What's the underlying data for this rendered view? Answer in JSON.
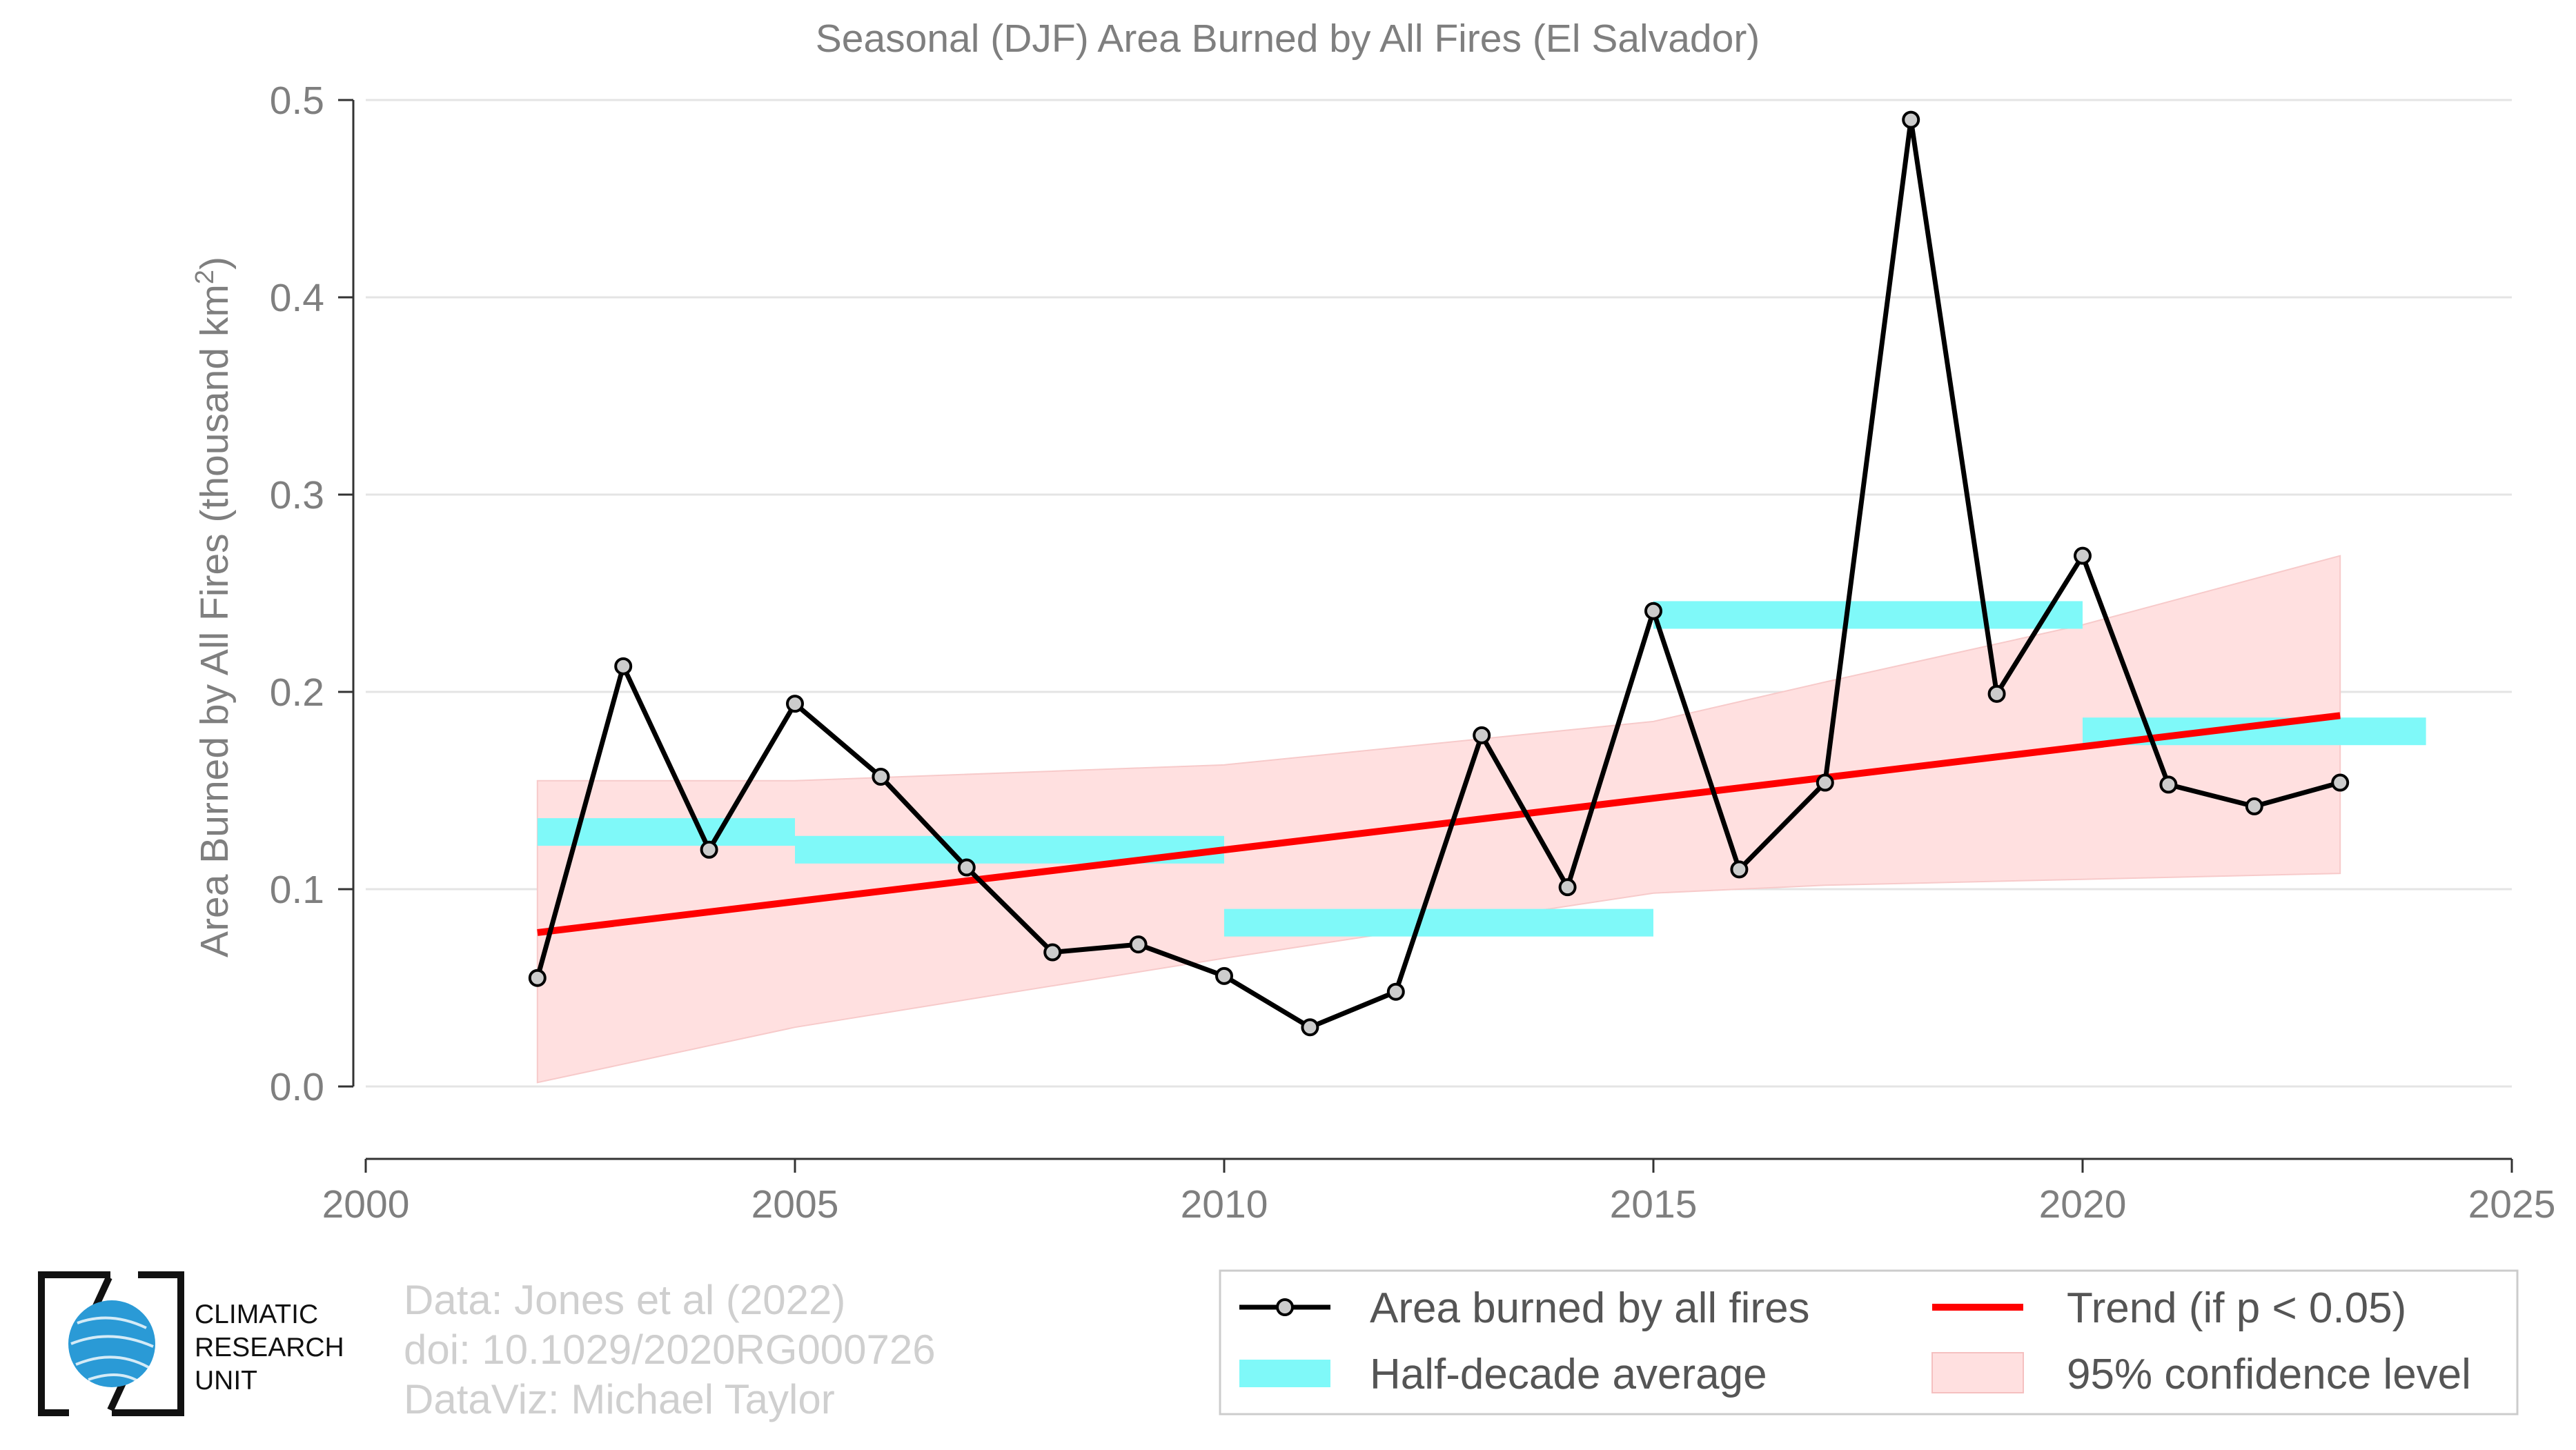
{
  "chart_data": {
    "type": "line",
    "title": "Seasonal (DJF) Area Burned by All Fires (El Salvador)",
    "ylabel": "Area Burned by All Fires (thousand km²)",
    "xlabel": "",
    "xlim": [
      2000,
      2025
    ],
    "ylim": [
      0,
      0.5
    ],
    "xticks": [
      "2000",
      "2005",
      "2010",
      "2015",
      "2020",
      "2025"
    ],
    "yticks": [
      "0.0",
      "0.1",
      "0.2",
      "0.3",
      "0.4",
      "0.5"
    ],
    "grid": "horizontal",
    "legend_position": "bottom-right",
    "series": [
      {
        "name": "Area burned by all fires",
        "color": "#000000",
        "x": [
          2002,
          2003,
          2004,
          2005,
          2006,
          2007,
          2008,
          2009,
          2010,
          2011,
          2012,
          2013,
          2014,
          2015,
          2016,
          2017,
          2018,
          2019,
          2020,
          2021,
          2022,
          2023
        ],
        "y": [
          0.055,
          0.213,
          0.12,
          0.194,
          0.157,
          0.111,
          0.068,
          0.072,
          0.056,
          0.03,
          0.048,
          0.178,
          0.101,
          0.241,
          0.11,
          0.154,
          0.49,
          0.199,
          0.269,
          0.153,
          0.142,
          0.154
        ]
      }
    ],
    "half_decade_average": {
      "name": "Half-decade average",
      "color": "#7ff9f9",
      "segments": [
        {
          "x0": 2002,
          "x1": 2005,
          "y": 0.129
        },
        {
          "x0": 2005,
          "x1": 2010,
          "y": 0.12
        },
        {
          "x0": 2010,
          "x1": 2015,
          "y": 0.083
        },
        {
          "x0": 2015,
          "x1": 2020,
          "y": 0.239
        },
        {
          "x0": 2020,
          "x1": 2024,
          "y": 0.18
        }
      ]
    },
    "trend": {
      "name": "Trend (if p < 0.05)",
      "color": "#ff0000",
      "x": [
        2002,
        2023
      ],
      "y": [
        0.078,
        0.188
      ]
    },
    "confidence": {
      "name": "95% confidence level",
      "color": "#ffe0e0",
      "x": [
        2002,
        2005,
        2010,
        2015,
        2017,
        2020,
        2023
      ],
      "upper": [
        0.155,
        0.155,
        0.163,
        0.185,
        0.205,
        0.234,
        0.269
      ],
      "lower": [
        0.002,
        0.03,
        0.065,
        0.098,
        0.102,
        0.105,
        0.108
      ]
    }
  },
  "credits": {
    "line1": "Data: Jones et al (2022)",
    "line2": "doi: 10.1029/2020RG000726",
    "line3": "DataViz: Michael Taylor"
  },
  "logo": {
    "line1": "CLIMATIC",
    "line2": "RESEARCH",
    "line3": "UNIT"
  }
}
